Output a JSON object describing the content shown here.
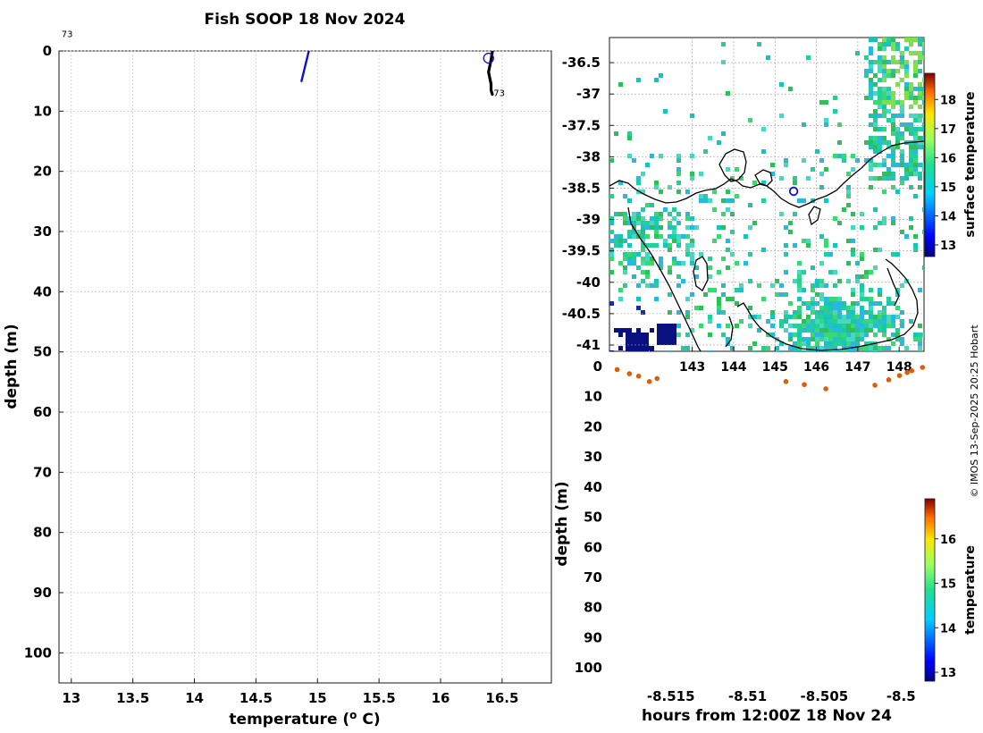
{
  "page": {
    "title": "Fish SOOP 18 Nov 2024",
    "credit": "© IMOS 13-Sep-2025 20:25 Hobart"
  },
  "colors": {
    "profile_blue": "#0a10d8",
    "profile_black": "#000000",
    "time_dots": "#d95f0e",
    "grid": "#c8c8dc",
    "land_outline": "#000000"
  },
  "chart_data": [
    {
      "id": "profile",
      "type": "line",
      "title": "Fish SOOP 18 Nov 2024",
      "xlabel": "temperature (ᵒ C)",
      "ylabel": "depth (m)",
      "xlim": [
        12.9,
        16.9
      ],
      "ylim": [
        105,
        0
      ],
      "xticks": [
        13,
        13.5,
        14,
        14.5,
        15,
        15.5,
        16,
        16.5
      ],
      "yticks": [
        0,
        10,
        20,
        30,
        40,
        50,
        60,
        70,
        80,
        90,
        100
      ],
      "grid": true,
      "annotations": [
        {
          "text": "73",
          "x": 12.92,
          "y": -2.3
        },
        {
          "text": "73",
          "x": 16.43,
          "y": 7.5
        }
      ],
      "series": [
        {
          "color": "#0a10d8",
          "x": [
            14.93,
            14.87
          ],
          "y": [
            0,
            5
          ]
        },
        {
          "color": "#000000",
          "x": [
            16.42,
            16.41,
            16.4,
            16.39,
            16.4,
            16.41,
            16.41,
            16.42
          ],
          "y": [
            0.2,
            1.5,
            2.5,
            3.5,
            4.5,
            5.5,
            6.5,
            7.2
          ]
        }
      ],
      "markers": [
        {
          "x": 16.39,
          "y": 1.2,
          "shape": "open-circle"
        }
      ]
    },
    {
      "id": "map",
      "type": "heatmap",
      "xticks": [
        143,
        144,
        145,
        146,
        147,
        148
      ],
      "yticks": [
        -36.5,
        -37,
        -37.5,
        -38,
        -38.5,
        -39,
        -39.5,
        -40,
        -40.5,
        -41
      ],
      "xlim": [
        141.0,
        148.6
      ],
      "ylim": [
        -41.1,
        -36.1
      ],
      "colorbar": {
        "label": "surface temperature",
        "ticks": [
          13,
          14,
          15,
          16,
          17,
          18
        ],
        "range": [
          12.6,
          18.9
        ]
      },
      "grid": true,
      "marker": {
        "lon": 145.45,
        "lat": -38.55
      }
    },
    {
      "id": "timeline",
      "type": "scatter",
      "xlabel": "hours from 12:00Z 18 Nov 24",
      "ylabel": "depth (m)",
      "xlim": [
        -8.519,
        -8.4985
      ],
      "ylim": [
        105,
        0
      ],
      "xticks": [
        -8.515,
        -8.51,
        -8.505,
        -8.5
      ],
      "xtick_labels": [
        "-8.515",
        "-8.51",
        "-8.505",
        "-8.5"
      ],
      "yticks": [
        0,
        10,
        20,
        30,
        40,
        50,
        60,
        70,
        80,
        90,
        100
      ],
      "colorbar": {
        "label": "temperature",
        "ticks": [
          13,
          14,
          15,
          16
        ],
        "range": [
          12.8,
          16.9
        ]
      },
      "x": [
        -8.5185,
        -8.5177,
        -8.5171,
        -8.5164,
        -8.5159,
        -8.5075,
        -8.5063,
        -8.5049,
        -8.5017,
        -8.5008,
        -8.5001,
        -8.4996,
        -8.4993,
        -8.4986
      ],
      "y": [
        1,
        2.4,
        3.2,
        5,
        4,
        5,
        6,
        7.4,
        6.2,
        4.4,
        3,
        2,
        1.4,
        0.3
      ]
    }
  ]
}
